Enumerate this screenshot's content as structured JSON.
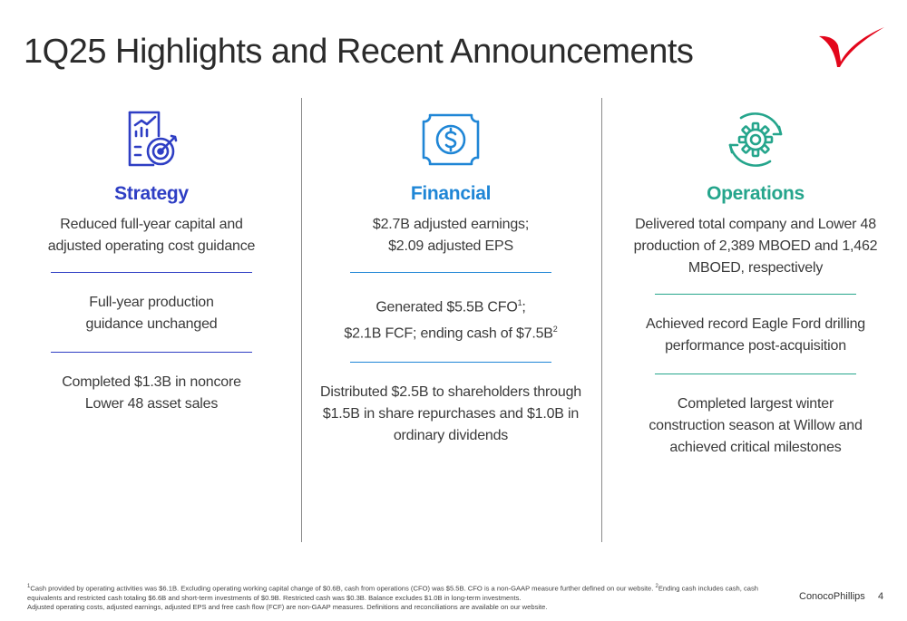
{
  "title": "1Q25 Highlights and Recent Announcements",
  "colors": {
    "strategy": "#2e3ec4",
    "financial": "#1f86d6",
    "operations": "#25a58c",
    "logo": "#e3061b"
  },
  "columns": [
    {
      "icon": "strategy-target-chart-icon",
      "heading": "Strategy",
      "items": [
        "Reduced full-year capital and adjusted operating cost guidance",
        "Full-year production guidance unchanged",
        "Completed $1.3B in noncore Lower 48 asset sales"
      ]
    },
    {
      "icon": "dollar-bill-icon",
      "heading": "Financial",
      "items": [
        "$2.7B adjusted earnings; $2.09 adjusted EPS",
        {
          "line1_text": "Generated $5.5B CFO",
          "line1_sup": "1",
          "line1_tail": ";",
          "line2_text": "$2.1B FCF; ending cash of $7.5B",
          "line2_sup": "2"
        },
        "Distributed $2.5B to shareholders through $1.5B in share repurchases and $1.0B in ordinary dividends"
      ]
    },
    {
      "icon": "gear-cycle-icon",
      "heading": "Operations",
      "items": [
        "Delivered total company and Lower 48 production of 2,389 MBOED and 1,462 MBOED, respectively",
        "Achieved record Eagle Ford drilling performance post-acquisition",
        "Completed largest winter construction season at Willow and achieved critical milestones"
      ]
    }
  ],
  "footnote": {
    "sup1": "1",
    "text1": "Cash provided by operating activities was $6.1B. Excluding operating working capital change of $0.6B, cash from operations (CFO) was $5.5B. CFO is a non-GAAP measure further defined on our website. ",
    "sup2": "2",
    "text2": "Ending cash includes cash, cash equivalents and restricted cash totaling $6.6B and short-term investments of $0.9B. Restricted cash was $0.3B. Balance excludes $1.0B in long-term investments.",
    "line3": "Adjusted operating costs, adjusted earnings, adjusted EPS and free cash flow (FCF) are non-GAAP measures. Definitions and reconciliations are available on our website."
  },
  "brand": "ConocoPhillips",
  "page_number": "4"
}
